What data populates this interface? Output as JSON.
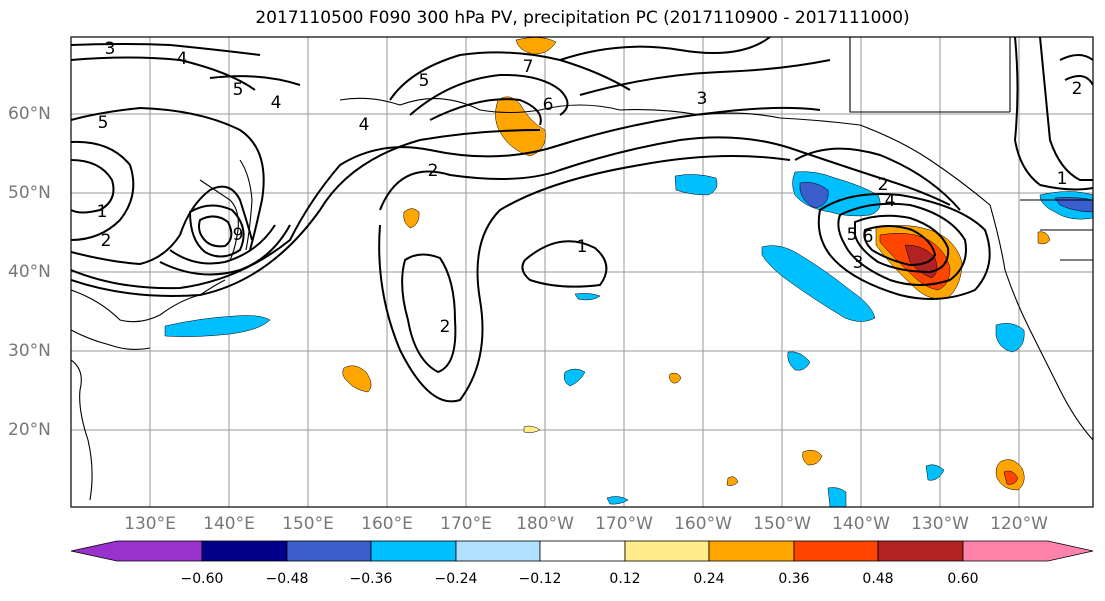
{
  "title": "2017110500 F090 300 hPa PV, precipitation PC (2017110900 - 2017111000)",
  "lat_labels": [
    "60°N",
    "50°N",
    "40°N",
    "30°N",
    "20°N"
  ],
  "lon_labels": [
    "130°E",
    "140°E",
    "150°E",
    "160°E",
    "170°E",
    "180°W",
    "170°W",
    "160°W",
    "150°W",
    "140°W",
    "130°W",
    "120°W"
  ],
  "colorbar": {
    "tick_labels": [
      "−0.60",
      "−0.48",
      "−0.36",
      "−0.24",
      "−0.12",
      "0.12",
      "0.24",
      "0.36",
      "0.48",
      "0.60"
    ],
    "colors": [
      "#9932CC",
      "#00008B",
      "#3A5FCD",
      "#00BFFF",
      "#B0E2FF",
      "#FFFFFF",
      "#FFEC8B",
      "#FFA500",
      "#FF4500",
      "#B22222",
      "#FF82AB"
    ]
  },
  "pv_contour_labels": [
    "3",
    "4",
    "5",
    "5",
    "1",
    "2",
    "9",
    "5",
    "4",
    "2",
    "7",
    "6",
    "3",
    "1",
    "2",
    "2",
    "4",
    "5",
    "6",
    "3",
    "1",
    "2",
    "4"
  ]
}
